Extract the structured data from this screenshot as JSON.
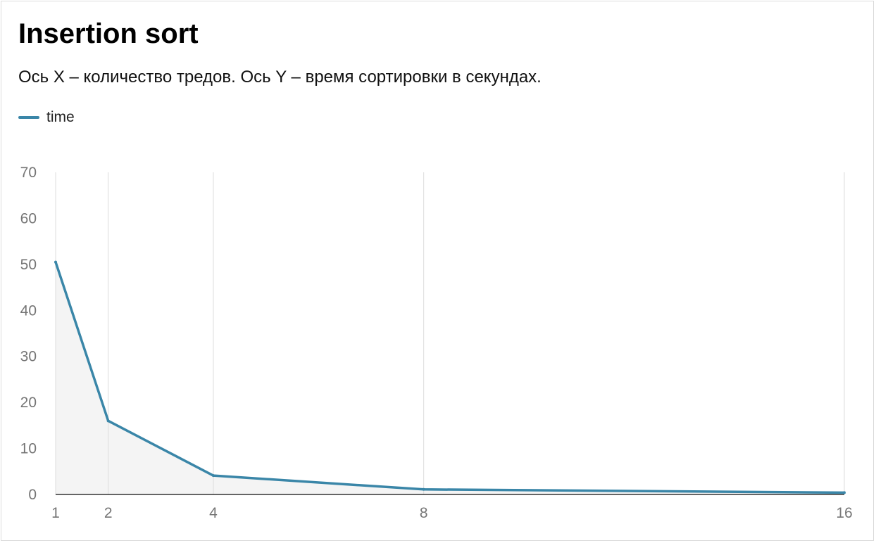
{
  "chart_data": {
    "type": "area",
    "title": "Insertion sort",
    "subtitle": "Ось X – количество тредов. Ось Y – время сортировки в секундах.",
    "xlabel": "",
    "ylabel": "",
    "x": [
      1,
      2,
      4,
      8,
      16
    ],
    "x_tick_labels": [
      "1",
      "2",
      "4",
      "8",
      "16"
    ],
    "series": [
      {
        "name": "time",
        "values": [
          50.5,
          16.0,
          4.1,
          1.1,
          0.4
        ]
      }
    ],
    "ylim": [
      0,
      70
    ],
    "y_ticks": [
      0,
      10,
      20,
      30,
      40,
      50,
      60,
      70
    ],
    "legend_position": "top-left",
    "grid": "vertical",
    "colors": {
      "line": "#3a86a8",
      "area_fill": "#f4f4f4",
      "grid": "#dcdcdc",
      "axis": "#333333"
    }
  }
}
